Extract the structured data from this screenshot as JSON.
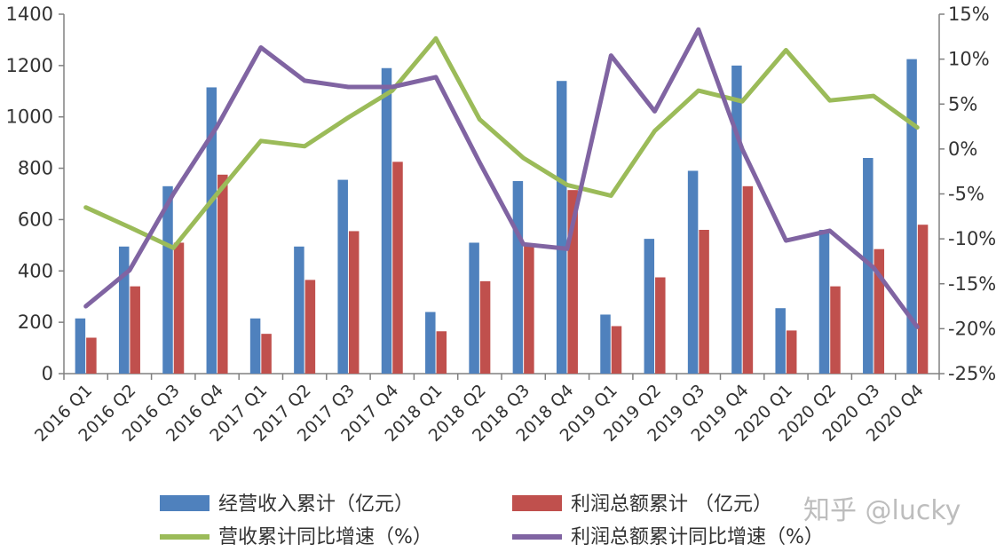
{
  "chart_data": {
    "type": "bar+line",
    "categories": [
      "2016 Q1",
      "2016 Q2",
      "2016 Q3",
      "2016 Q4",
      "2017 Q1",
      "2017 Q2",
      "2017 Q3",
      "2017 Q4",
      "2018 Q1",
      "2018 Q2",
      "2018 Q3",
      "2018 Q4",
      "2019 Q1",
      "2019 Q2",
      "2019 Q3",
      "2019 Q4",
      "2020 Q1",
      "2020 Q2",
      "2020 Q3",
      "2020 Q4"
    ],
    "left_axis": {
      "ylim": [
        0,
        1400
      ],
      "ticks": [
        "0",
        "200",
        "400",
        "600",
        "800",
        "1000",
        "1200",
        "1400"
      ],
      "tick_values": [
        0,
        200,
        400,
        600,
        800,
        1000,
        1200,
        1400
      ]
    },
    "right_axis": {
      "ylim": [
        -25,
        15
      ],
      "ticks": [
        "-25%",
        "-20%",
        "-15%",
        "-10%",
        "-5%",
        "0%",
        "5%",
        "10%",
        "15%"
      ],
      "tick_values": [
        -25,
        -20,
        -15,
        -10,
        -5,
        0,
        5,
        10,
        15
      ]
    },
    "bar_series": [
      {
        "name": "经营收入累计（亿元）",
        "color": "#4f81bd",
        "values": [
          215,
          495,
          730,
          1115,
          215,
          495,
          755,
          1190,
          240,
          510,
          750,
          1140,
          230,
          525,
          790,
          1200,
          255,
          560,
          840,
          1225
        ]
      },
      {
        "name": "利润总额累计 （亿元）",
        "color": "#c0504d",
        "values": [
          140,
          340,
          510,
          775,
          155,
          365,
          555,
          825,
          165,
          360,
          505,
          715,
          185,
          375,
          560,
          730,
          168,
          340,
          485,
          580
        ]
      }
    ],
    "line_series": [
      {
        "name": "营收累计同比增速（%）",
        "color": "#9bbb59",
        "values": [
          -6.5,
          -8.7,
          -11.0,
          -5.0,
          0.9,
          0.3,
          3.5,
          6.5,
          12.3,
          3.3,
          -1.0,
          -4.0,
          -5.2,
          2.0,
          6.5,
          5.3,
          11.0,
          5.4,
          5.9,
          2.4
        ]
      },
      {
        "name": "利润总额累计同比增速（%）",
        "color": "#8064a2",
        "values": [
          -17.5,
          -13.5,
          -5.0,
          2.5,
          11.3,
          7.6,
          6.9,
          6.9,
          8.0,
          -1.5,
          -10.6,
          -11.1,
          10.4,
          4.2,
          13.3,
          0.0,
          -10.2,
          -9.1,
          -13.2,
          -19.8
        ]
      }
    ],
    "legend_position": "bottom",
    "grid": false
  },
  "watermark": "知乎 @lucky"
}
